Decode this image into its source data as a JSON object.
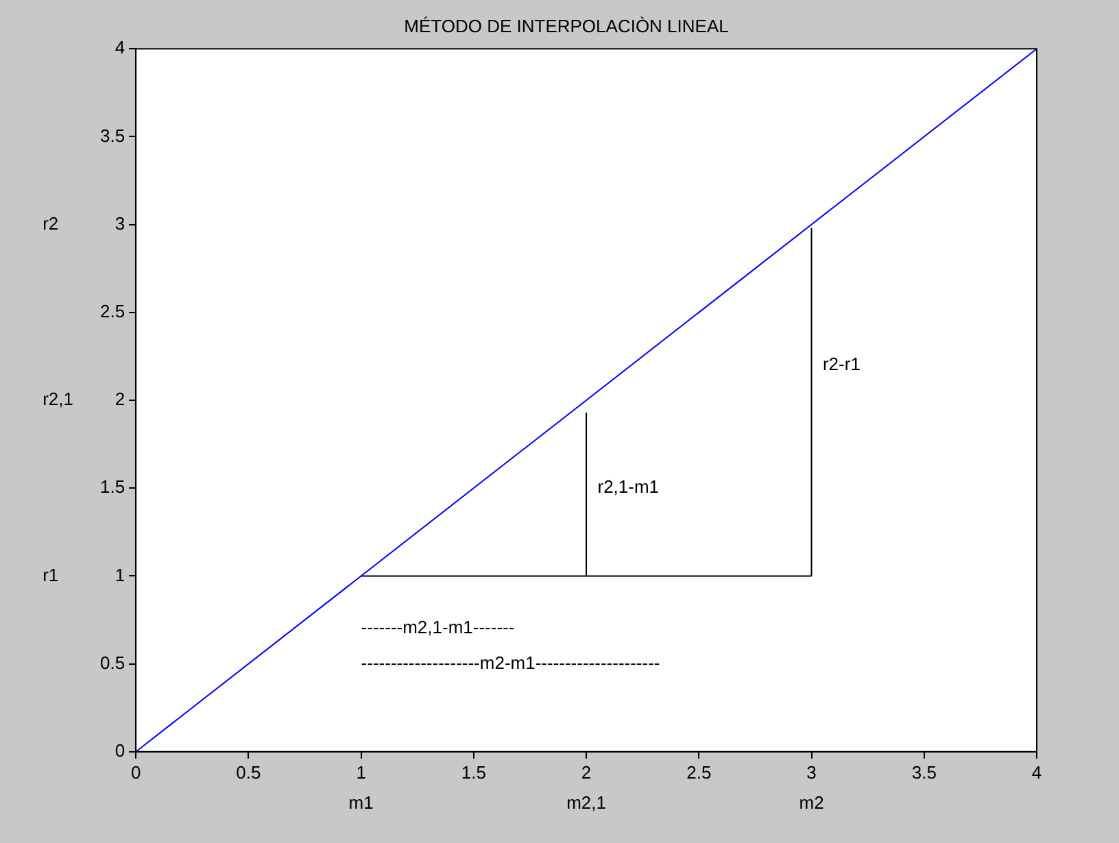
{
  "chart_data": {
    "type": "line",
    "title": "MÉTODO DE INTERPOLACIÒN LINEAL",
    "xlim": [
      0,
      4
    ],
    "ylim": [
      0,
      4
    ],
    "xticks": [
      0,
      0.5,
      1,
      1.5,
      2,
      2.5,
      3,
      3.5,
      4
    ],
    "yticks": [
      0,
      0.5,
      1,
      1.5,
      2,
      2.5,
      3,
      3.5,
      4
    ],
    "grid": false,
    "legend": false,
    "marker": "none",
    "line_style": "solid",
    "series": [
      {
        "x": [
          0,
          4
        ],
        "values": [
          0,
          4
        ],
        "color": "#0000ff"
      },
      {
        "x": [
          1,
          3
        ],
        "values": [
          1,
          1
        ],
        "color": "#000000"
      },
      {
        "x": [
          2,
          2
        ],
        "values": [
          1,
          1.93
        ],
        "color": "#000000"
      },
      {
        "x": [
          3,
          3
        ],
        "values": [
          1,
          2.98
        ],
        "color": "#000000"
      }
    ],
    "annotations": [
      "r2,1-m1",
      "r2-r1",
      "-------m2,1-m1-------",
      "--------------------m2-m1---------------------",
      "m1",
      "m2,1",
      "m2",
      "r1",
      "r2,1",
      "r2"
    ]
  }
}
